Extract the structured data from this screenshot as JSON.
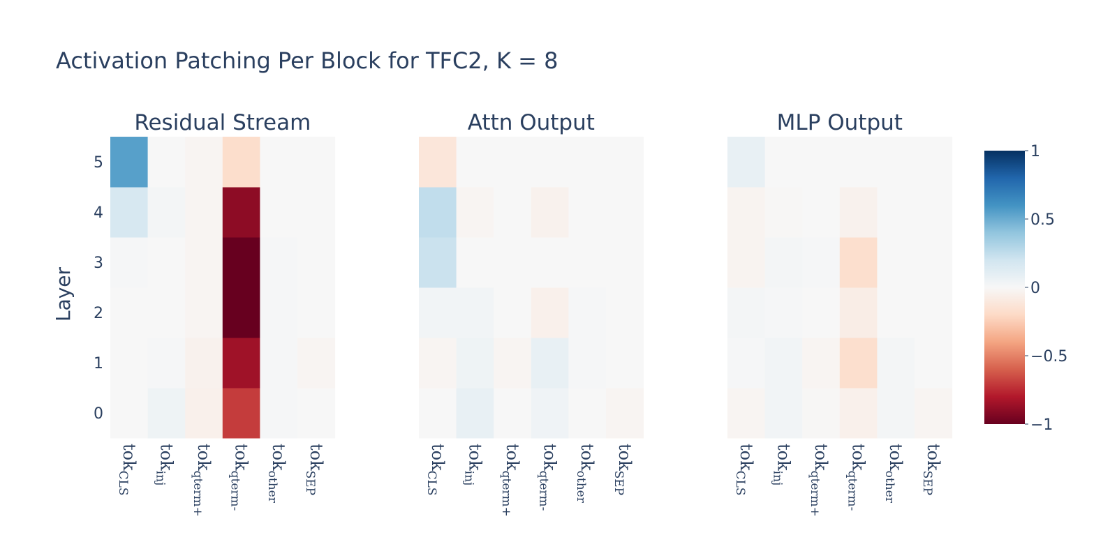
{
  "chart_data": {
    "type": "heatmap",
    "title": "Activation Patching Per Block for TFC2, K = 8",
    "ylabel": "Layer",
    "colorscale": "RdBu",
    "zrange": [
      -1,
      1
    ],
    "colorbar_ticks": [
      {
        "value": 1,
        "label": "1"
      },
      {
        "value": 0.5,
        "label": "0.5"
      },
      {
        "value": 0,
        "label": "0"
      },
      {
        "value": -0.5,
        "label": "−0.5"
      },
      {
        "value": -1,
        "label": "−1"
      }
    ],
    "y": [
      "0",
      "1",
      "2",
      "3",
      "4",
      "5"
    ],
    "x": [
      {
        "base": "tok",
        "sub": "CLS"
      },
      {
        "base": "tok",
        "sub": "inj"
      },
      {
        "base": "tok",
        "sub": "qterm+"
      },
      {
        "base": "tok",
        "sub": "qterm-"
      },
      {
        "base": "tok",
        "sub": "other"
      },
      {
        "base": "tok",
        "sub": "SEP"
      }
    ],
    "panels": [
      {
        "title": "Residual Stream",
        "z": [
          [
            0.0,
            0.05,
            -0.05,
            -0.7,
            0.01,
            0.0
          ],
          [
            0.0,
            0.01,
            -0.04,
            -0.85,
            0.01,
            -0.02
          ],
          [
            0.0,
            0.0,
            -0.02,
            -1.0,
            0.01,
            0.0
          ],
          [
            0.01,
            0.0,
            -0.02,
            -1.0,
            0.01,
            0.0
          ],
          [
            0.17,
            0.02,
            -0.02,
            -0.9,
            0.0,
            0.0
          ],
          [
            0.55,
            0.0,
            -0.02,
            -0.18,
            0.0,
            0.0
          ]
        ]
      },
      {
        "title": "Attn Output",
        "z": [
          [
            0.0,
            0.08,
            0.0,
            0.04,
            0.0,
            -0.02
          ],
          [
            -0.02,
            0.05,
            -0.02,
            0.08,
            0.01,
            0.0
          ],
          [
            0.03,
            0.03,
            0.0,
            -0.05,
            0.01,
            0.0
          ],
          [
            0.22,
            0.0,
            0.0,
            0.0,
            0.0,
            0.0
          ],
          [
            0.25,
            -0.02,
            0.0,
            -0.04,
            0.0,
            0.0
          ],
          [
            -0.12,
            0.0,
            0.0,
            0.0,
            0.0,
            0.0
          ]
        ]
      },
      {
        "title": "MLP Output",
        "z": [
          [
            -0.02,
            0.03,
            -0.01,
            -0.05,
            0.02,
            -0.02
          ],
          [
            0.01,
            0.03,
            -0.02,
            -0.17,
            0.02,
            0.0
          ],
          [
            0.02,
            0.01,
            0.0,
            -0.07,
            0.0,
            0.0
          ],
          [
            -0.03,
            0.02,
            0.01,
            -0.17,
            0.0,
            0.0
          ],
          [
            -0.03,
            -0.01,
            0.0,
            -0.04,
            0.0,
            0.0
          ],
          [
            0.08,
            0.0,
            0.0,
            0.0,
            0.0,
            0.0
          ]
        ]
      }
    ]
  }
}
